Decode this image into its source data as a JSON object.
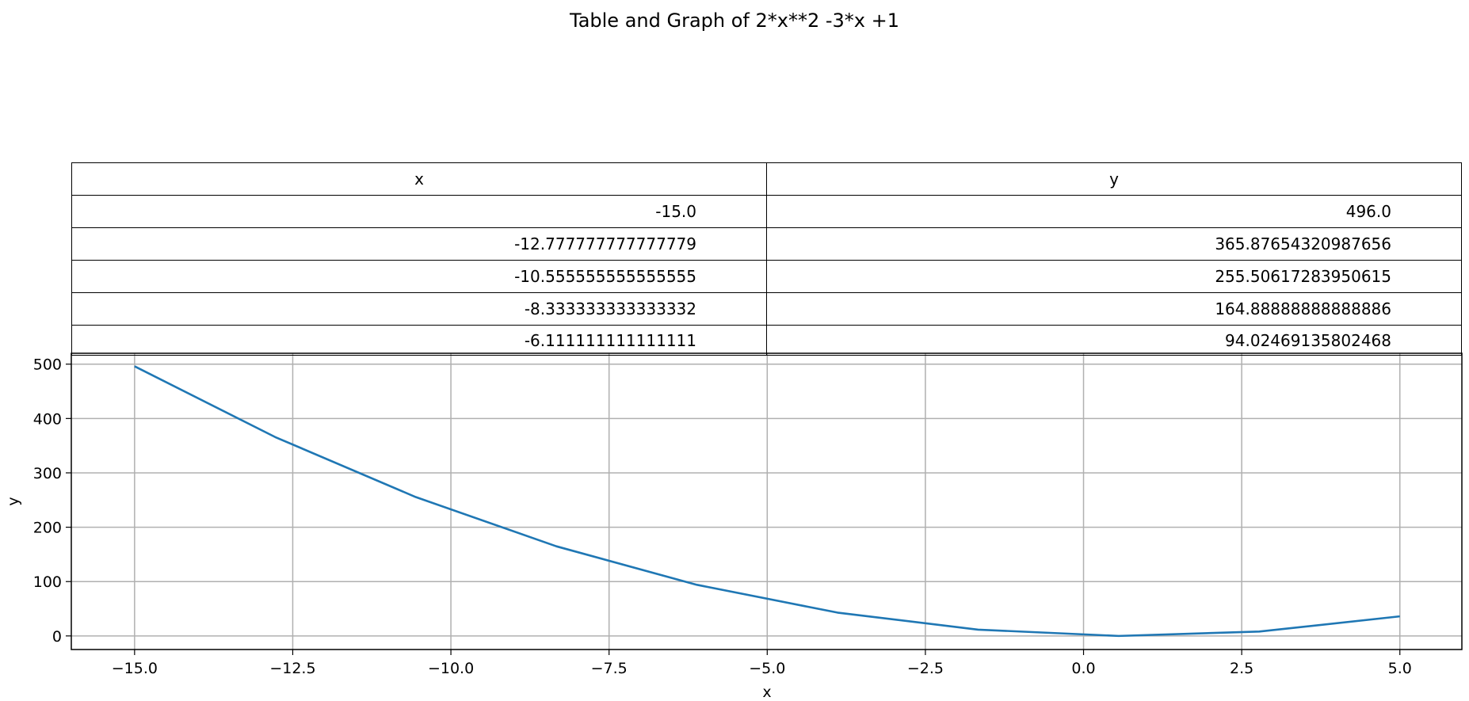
{
  "title": "Table and Graph of 2*x**2 -3*x +1",
  "table": {
    "headers": [
      "x",
      "y"
    ],
    "rows": [
      [
        "-15.0",
        "496.0"
      ],
      [
        "-12.777777777777779",
        "365.87654320987656"
      ],
      [
        "-10.555555555555555",
        "255.50617283950615"
      ],
      [
        "-8.333333333333332",
        "164.88888888888886"
      ],
      [
        "-6.111111111111111",
        "94.02469135802468"
      ]
    ]
  },
  "chart_data": {
    "type": "line",
    "title": "Table and Graph of 2*x**2 -3*x +1",
    "xlabel": "x",
    "ylabel": "y",
    "xlim": [
      -16,
      5.98
    ],
    "ylim": [
      -25,
      520
    ],
    "xticks": [
      -15.0,
      -12.5,
      -10.0,
      -7.5,
      -5.0,
      -2.5,
      0.0,
      2.5,
      5.0
    ],
    "xtick_labels": [
      "−15.0",
      "−12.5",
      "−10.0",
      "−7.5",
      "−5.0",
      "−2.5",
      "0.0",
      "2.5",
      "5.0"
    ],
    "yticks": [
      0,
      100,
      200,
      300,
      400,
      500
    ],
    "ytick_labels": [
      "0",
      "100",
      "200",
      "300",
      "400",
      "500"
    ],
    "grid": true,
    "series": [
      {
        "color": "#1f77b4",
        "x": [
          -15.0,
          -12.777777777777779,
          -10.555555555555555,
          -8.333333333333332,
          -6.111111111111111,
          -3.8888888888888893,
          -1.666666666666666,
          0.5555555555555554,
          2.7777777777777786,
          5.0
        ],
        "y": [
          496.0,
          365.87654320987656,
          255.50617283950615,
          164.88888888888886,
          94.02469135802468,
          42.91358024691358,
          11.555555555555552,
          -0.04938271604938271,
          8.098765432098771,
          36.0
        ]
      }
    ]
  }
}
